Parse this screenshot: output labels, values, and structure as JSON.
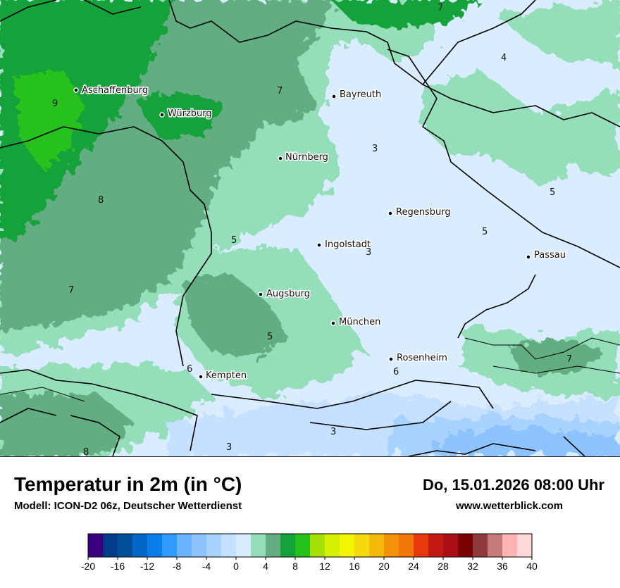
{
  "title": "Temperatur in 2m (in °C)",
  "model": "Modell: ICON-D2 06z, Deutscher Wetterdienst",
  "datetime": "Do, 15.01.2026 08:00 Uhr",
  "website": "www.wetterblick.com",
  "cities": [
    {
      "name": "Aschaffenburg"
    },
    {
      "name": "Würzburg"
    },
    {
      "name": "Bayreuth"
    },
    {
      "name": "Nürnberg"
    },
    {
      "name": "Regensburg"
    },
    {
      "name": "Ingolstadt"
    },
    {
      "name": "Passau"
    },
    {
      "name": "Augsburg"
    },
    {
      "name": "München"
    },
    {
      "name": "Rosenheim"
    },
    {
      "name": "Kempten"
    }
  ],
  "isotherm_labels": [
    "7",
    "4",
    "9",
    "7",
    "3",
    "8",
    "5",
    "5",
    "3",
    "5",
    "7",
    "5",
    "6",
    "6",
    "7",
    "8",
    "3",
    "3"
  ],
  "legend": {
    "min": -20,
    "max": 40,
    "step": 2,
    "tick_labels": [
      "-20",
      "-16",
      "-12",
      "-8",
      "-4",
      "0",
      "4",
      "8",
      "12",
      "16",
      "20",
      "24",
      "28",
      "32",
      "36",
      "40"
    ],
    "colors": [
      "#3a007f",
      "#003b8a",
      "#004f9a",
      "#0066c8",
      "#0a7ee8",
      "#2f9bff",
      "#6cb4ff",
      "#8dc4ff",
      "#a8d2ff",
      "#c6e0ff",
      "#daecff",
      "#94dfba",
      "#63ad83",
      "#16a23a",
      "#25c11a",
      "#a6e006",
      "#d7ef00",
      "#f3f503",
      "#f3d90e",
      "#f3ba0d",
      "#f39208",
      "#f1760a",
      "#e83a0c",
      "#c21812",
      "#aa1016",
      "#7a0000",
      "#8e3a3a",
      "#c77a7a",
      "#ffb3b3",
      "#ffd8d8"
    ]
  }
}
